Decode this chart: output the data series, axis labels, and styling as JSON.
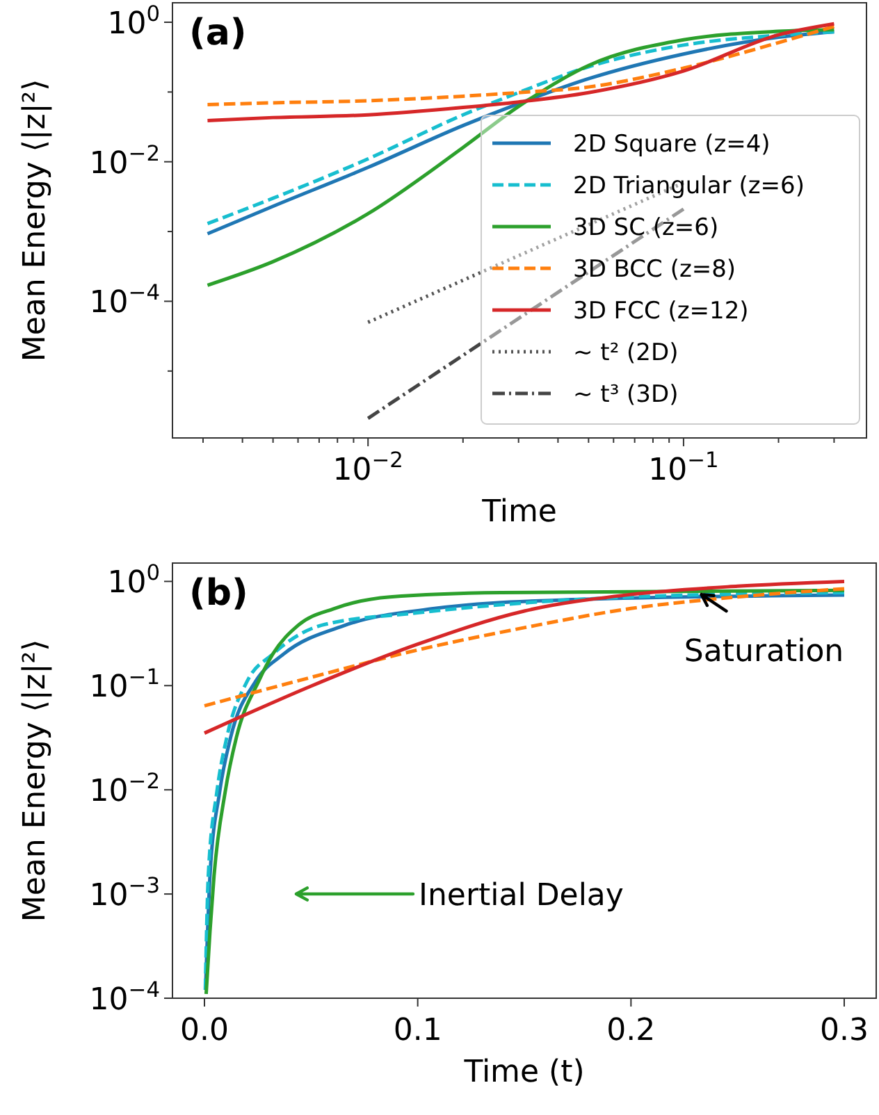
{
  "chart_data": [
    {
      "type": "line",
      "title": "(a)",
      "xlabel": "Time",
      "ylabel": "Mean Energy ⟨|z|²⟩",
      "log": "xy",
      "legend": "bottom right",
      "grid": false,
      "xlim": [
        0.0024,
        0.38
      ],
      "ylim": [
        1.1e-06,
        1.9
      ],
      "xticks": [
        {
          "value": 0.003,
          "label": null
        },
        {
          "value": 0.004,
          "label": null
        },
        {
          "value": 0.005,
          "label": null
        },
        {
          "value": 0.006,
          "label": null
        },
        {
          "value": 0.007,
          "label": null
        },
        {
          "value": 0.008,
          "label": null
        },
        {
          "value": 0.009,
          "label": null
        },
        {
          "value": 0.01,
          "label": "10$^{−2}$"
        },
        {
          "value": 0.02,
          "label": null
        },
        {
          "value": 0.03,
          "label": null
        },
        {
          "value": 0.04,
          "label": null
        },
        {
          "value": 0.05,
          "label": null
        },
        {
          "value": 0.06,
          "label": null
        },
        {
          "value": 0.07,
          "label": null
        },
        {
          "value": 0.08,
          "label": null
        },
        {
          "value": 0.09,
          "label": null
        },
        {
          "value": 0.1,
          "label": "10$^{−1}$"
        },
        {
          "value": 0.2,
          "label": null
        },
        {
          "value": 0.3,
          "label": null
        }
      ],
      "yticks": [
        {
          "value": 1e-05,
          "label": null
        },
        {
          "value": 0.0001,
          "label": "10$^{−4}$"
        },
        {
          "value": 0.001,
          "label": null
        },
        {
          "value": 0.01,
          "label": "10$^{−2}$"
        },
        {
          "value": 0.1,
          "label": null
        },
        {
          "value": 1,
          "label": "10$^{0}$"
        }
      ],
      "series": [
        {
          "name": "2D Square (z=4)",
          "color": "#1f77b4",
          "line_style": "solid",
          "x": [
            0.0031,
            0.005,
            0.01,
            0.02,
            0.03,
            0.05,
            0.1,
            0.2,
            0.3
          ],
          "values": [
            0.00093,
            0.0023,
            0.0083,
            0.033,
            0.068,
            0.155,
            0.35,
            0.61,
            0.73
          ]
        },
        {
          "name": "2D Triangular (z=6)",
          "color": "#17becf",
          "line_style": "dashed",
          "x": [
            0.0031,
            0.005,
            0.01,
            0.02,
            0.03,
            0.05,
            0.1,
            0.2,
            0.3
          ],
          "values": [
            0.0013,
            0.003,
            0.011,
            0.047,
            0.098,
            0.23,
            0.47,
            0.65,
            0.73
          ]
        },
        {
          "name": "3D SC (z=6)",
          "color": "#2ca02c",
          "line_style": "solid",
          "x": [
            0.0031,
            0.005,
            0.01,
            0.02,
            0.03,
            0.05,
            0.1,
            0.2,
            0.3
          ],
          "values": [
            0.00017,
            0.00037,
            0.0018,
            0.016,
            0.062,
            0.24,
            0.56,
            0.74,
            0.78
          ]
        },
        {
          "name": "3D BCC (z=8)",
          "color": "#ff7f0e",
          "line_style": "dashed",
          "x": [
            0.0031,
            0.005,
            0.01,
            0.02,
            0.03,
            0.05,
            0.1,
            0.2,
            0.3
          ],
          "values": [
            0.066,
            0.07,
            0.075,
            0.087,
            0.098,
            0.118,
            0.22,
            0.51,
            0.87
          ]
        },
        {
          "name": "3D FCC (z=12)",
          "color": "#d62728",
          "line_style": "solid",
          "x": [
            0.0031,
            0.005,
            0.01,
            0.02,
            0.03,
            0.05,
            0.1,
            0.2,
            0.3
          ],
          "values": [
            0.039,
            0.043,
            0.047,
            0.06,
            0.072,
            0.098,
            0.2,
            0.66,
            0.95
          ]
        },
        {
          "name": "∼ t² (2D)",
          "color": "#555555",
          "line_style": "dotted",
          "x": [
            0.01,
            0.1
          ],
          "values": [
            5e-05,
            0.005
          ]
        },
        {
          "name": "∼ t³ (3D)",
          "color": "#444444",
          "line_style": "dashdot",
          "x": [
            0.01,
            0.1
          ],
          "values": [
            2.1e-06,
            0.0021
          ]
        }
      ]
    },
    {
      "type": "line",
      "title": "(b)",
      "xlabel": "Time (t)",
      "ylabel": "Mean Energy ⟨|z|²⟩",
      "log": "y",
      "legend": false,
      "grid": false,
      "xlim": [
        -0.015,
        0.315
      ],
      "ylim": [
        0.0001,
        1.5
      ],
      "xticks": [
        {
          "value": 0,
          "label": "0.0"
        },
        {
          "value": 0.1,
          "label": "0.1"
        },
        {
          "value": 0.2,
          "label": "0.2"
        },
        {
          "value": 0.3,
          "label": "0.3"
        }
      ],
      "yticks": [
        {
          "value": 0.0001,
          "label": "10$^{−4}$"
        },
        {
          "value": 0.001,
          "label": "10$^{−3}$"
        },
        {
          "value": 0.01,
          "label": "10$^{−2}$"
        },
        {
          "value": 0.1,
          "label": "10$^{−1}$"
        },
        {
          "value": 1,
          "label": "10$^{0}$"
        }
      ],
      "annotations": [
        {
          "text": "Saturation",
          "x": 0.233,
          "y": 0.75
        },
        "Inertial Delay"
      ],
      "series": [
        {
          "color": "#1f77b4",
          "line_style": "solid",
          "x": [
            0.0005,
            0.0026,
            0.0071,
            0.0123,
            0.024,
            0.037,
            0.066,
            0.108,
            0.165,
            0.3
          ],
          "values": [
            0.00012,
            0.0015,
            0.0095,
            0.032,
            0.11,
            0.2,
            0.38,
            0.55,
            0.66,
            0.74
          ]
        },
        {
          "color": "#17becf",
          "line_style": "dashed",
          "x": [
            0.0004,
            0.0018,
            0.0058,
            0.0105,
            0.02,
            0.032,
            0.055,
            0.1,
            0.2,
            0.3
          ],
          "values": [
            0.00012,
            0.0015,
            0.0095,
            0.032,
            0.11,
            0.2,
            0.38,
            0.5,
            0.71,
            0.78
          ]
        },
        {
          "color": "#2ca02c",
          "line_style": "solid",
          "x": [
            0.0008,
            0.0026,
            0.0045,
            0.0097,
            0.015,
            0.0254,
            0.032,
            0.044,
            0.061,
            0.087,
            0.139,
            0.3
          ],
          "values": [
            0.00011,
            0.00044,
            0.0015,
            0.0095,
            0.032,
            0.11,
            0.2,
            0.38,
            0.55,
            0.71,
            0.78,
            0.82
          ]
        },
        {
          "color": "#ff7f0e",
          "line_style": "dashed",
          "x": [
            0,
            0.05,
            0.1,
            0.15,
            0.2,
            0.25,
            0.3
          ],
          "values": [
            0.064,
            0.12,
            0.22,
            0.36,
            0.55,
            0.71,
            0.85
          ]
        },
        {
          "color": "#d62728",
          "line_style": "solid",
          "x": [
            0,
            0.05,
            0.1,
            0.15,
            0.2,
            0.25,
            0.3
          ],
          "values": [
            0.035,
            0.099,
            0.25,
            0.52,
            0.75,
            0.9,
            1.0
          ]
        }
      ]
    }
  ]
}
